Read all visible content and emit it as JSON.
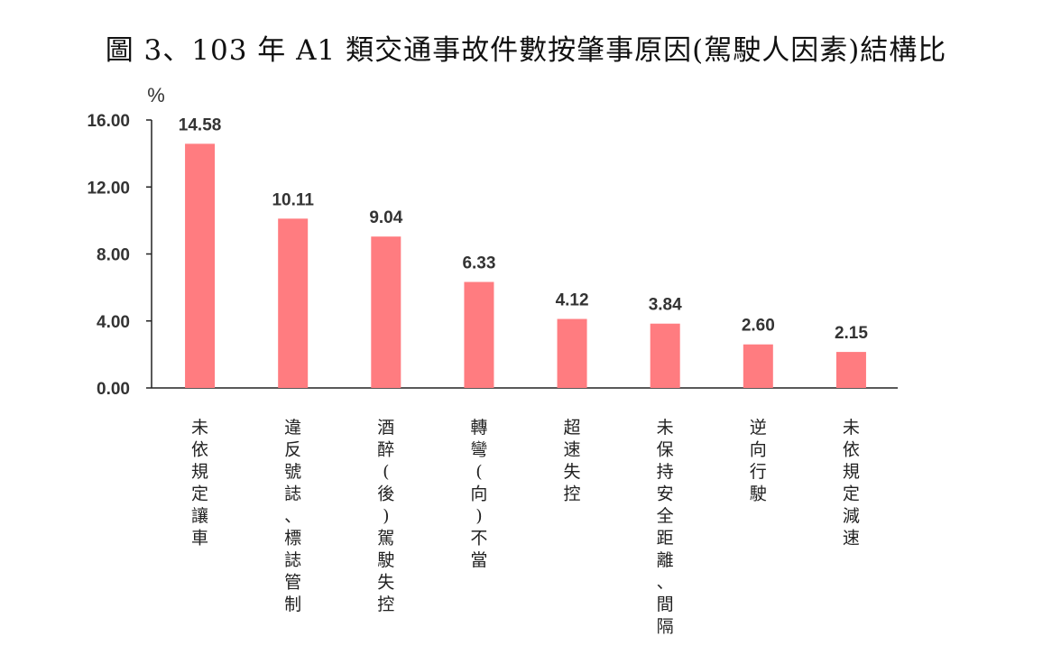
{
  "chart_data": {
    "type": "bar",
    "title": "圖 3、103 年 A1 類交通事故件數按肇事原因(駕駛人因素)結構比",
    "ylabel": "%",
    "xlabel": "",
    "ylim": [
      0,
      16
    ],
    "yticks": [
      "0.00",
      "4.00",
      "8.00",
      "12.00",
      "16.00"
    ],
    "categories": [
      "未依規定讓車",
      "違反號誌、標誌管制",
      "酒醉(後)駕駛失控",
      "轉彎(向)不當",
      "超速失控",
      "未保持安全距離、間隔",
      "逆向行駛",
      "未依規定減速"
    ],
    "values": [
      14.58,
      10.11,
      9.04,
      6.33,
      4.12,
      3.84,
      2.6,
      2.15
    ],
    "data_labels": [
      "14.58",
      "10.11",
      "9.04",
      "6.33",
      "4.12",
      "3.84",
      "2.60",
      "2.15"
    ],
    "grid": false,
    "bar_color": "#ff7c80",
    "axis_color": "#222222"
  }
}
